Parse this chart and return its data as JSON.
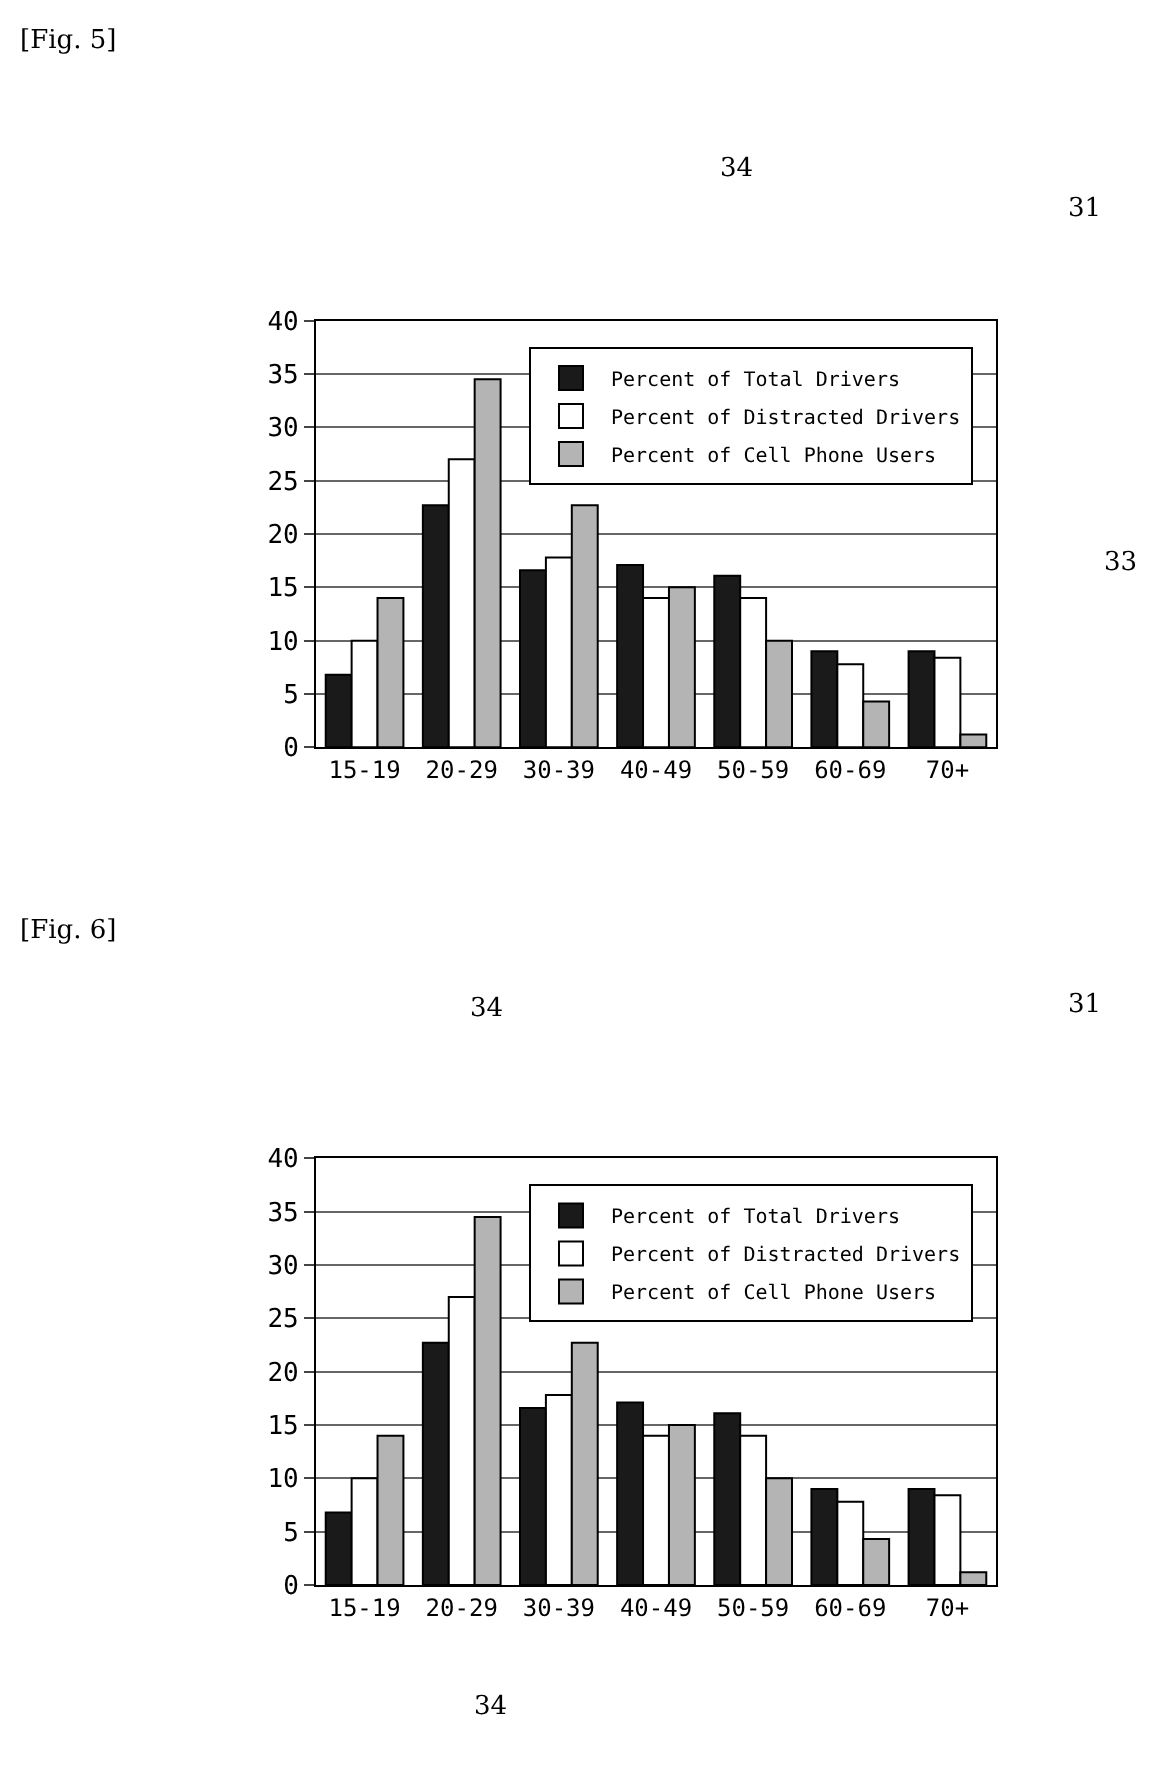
{
  "chart_data": [
    {
      "type": "bar",
      "categories": [
        "15-19",
        "20-29",
        "30-39",
        "40-49",
        "50-59",
        "60-69",
        "70+"
      ],
      "series": [
        {
          "name": "Percent of Total Drivers",
          "color": "#1a1a1a",
          "values": [
            6.8,
            22.7,
            16.6,
            17.1,
            16.1,
            9.0,
            9.0
          ]
        },
        {
          "name": "Percent of Distracted Drivers",
          "color": "#ffffff",
          "values": [
            10,
            27,
            17.8,
            14,
            14,
            7.8,
            8.4
          ]
        },
        {
          "name": "Percent of Cell Phone Users",
          "color": "#b4b4b4",
          "values": [
            14,
            34.5,
            22.7,
            15,
            10,
            4.3,
            1.2
          ]
        }
      ],
      "ylim": [
        0,
        40
      ],
      "yticks": [
        0,
        5,
        10,
        15,
        20,
        25,
        30,
        35,
        40
      ],
      "grid": "y",
      "legend": "top right",
      "annotations": [
        "[Fig. 5]",
        "34",
        "31",
        "33"
      ]
    },
    {
      "type": "bar",
      "categories": [
        "15-19",
        "20-29",
        "30-39",
        "40-49",
        "50-59",
        "60-69",
        "70+"
      ],
      "series": [
        {
          "name": "Percent of Total Drivers",
          "color": "#1a1a1a",
          "values": [
            6.8,
            22.7,
            16.6,
            17.1,
            16.1,
            9.0,
            9.0
          ]
        },
        {
          "name": "Percent of Distracted Drivers",
          "color": "#ffffff",
          "values": [
            10,
            27,
            17.8,
            14,
            14,
            7.8,
            8.4
          ]
        },
        {
          "name": "Percent of Cell Phone Users",
          "color": "#b4b4b4",
          "values": [
            14,
            34.5,
            22.7,
            15,
            10,
            4.3,
            1.2
          ]
        }
      ],
      "ylim": [
        0,
        40
      ],
      "yticks": [
        0,
        5,
        10,
        15,
        20,
        25,
        30,
        35,
        40
      ],
      "grid": "y",
      "legend": "top right",
      "annotations": [
        "[Fig. 6]",
        "34",
        "31",
        "34"
      ]
    }
  ]
}
